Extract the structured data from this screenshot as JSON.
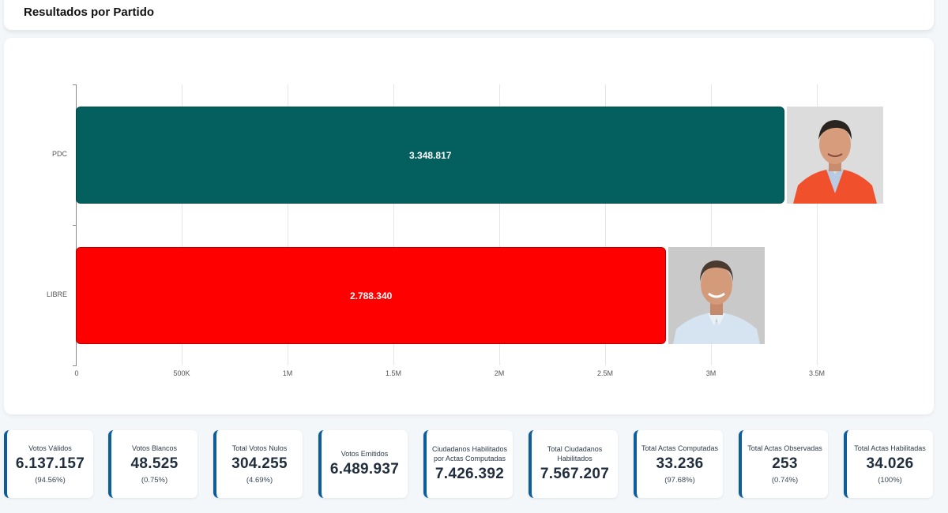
{
  "header": {
    "title": "Resultados por Partido"
  },
  "chart_data": {
    "type": "bar",
    "orientation": "horizontal",
    "title": "Resultados por Partido",
    "categories": [
      "PDC",
      "LIBRE"
    ],
    "values": [
      3348817,
      2788340
    ],
    "value_labels": [
      "3.348.817",
      "2.788.340"
    ],
    "colors": [
      "#04605f",
      "#ff0000"
    ],
    "xlabel": "",
    "ylabel": "",
    "xlim": [
      0,
      3600000
    ],
    "x_ticks": [
      0,
      500000,
      1000000,
      1500000,
      2000000,
      2500000,
      3000000,
      3500000
    ],
    "x_tick_labels": [
      "0",
      "500K",
      "1M",
      "1.5M",
      "2M",
      "2.5M",
      "3M",
      "3.5M"
    ],
    "grid": true,
    "legend": "none",
    "annotations": [
      "candidate photo at end of each bar"
    ]
  },
  "bars": [
    {
      "party": "PDC",
      "value_label": "3.348.817",
      "color": "#04605f",
      "photo": "candidate-photo-pdc"
    },
    {
      "party": "LIBRE",
      "value_label": "2.788.340",
      "color": "#ff0000",
      "photo": "candidate-photo-libre"
    }
  ],
  "stats": [
    {
      "label": "Votos Válidos",
      "value": "6.137.157",
      "pct": "(94.56%)"
    },
    {
      "label": "Votos Blancos",
      "value": "48.525",
      "pct": "(0.75%)"
    },
    {
      "label": "Total Votos Nulos",
      "value": "304.255",
      "pct": "(4.69%)"
    },
    {
      "label": "Votos Emitidos",
      "value": "6.489.937",
      "pct": null
    },
    {
      "label": "Ciudadanos Habilitados por Actas Computadas",
      "value": "7.426.392",
      "pct": null
    },
    {
      "label": "Total Ciudadanos Habilitados",
      "value": "7.567.207",
      "pct": null
    },
    {
      "label": "Total Actas Computadas",
      "value": "33.236",
      "pct": "(97.68%)"
    },
    {
      "label": "Total Actas Observadas",
      "value": "253",
      "pct": "(0.74%)"
    },
    {
      "label": "Total Actas Habilitadas",
      "value": "34.026",
      "pct": "(100%)"
    }
  ],
  "colors": {
    "accent": "#0d5d9a",
    "pdc": "#04605f",
    "libre": "#ff0000"
  }
}
